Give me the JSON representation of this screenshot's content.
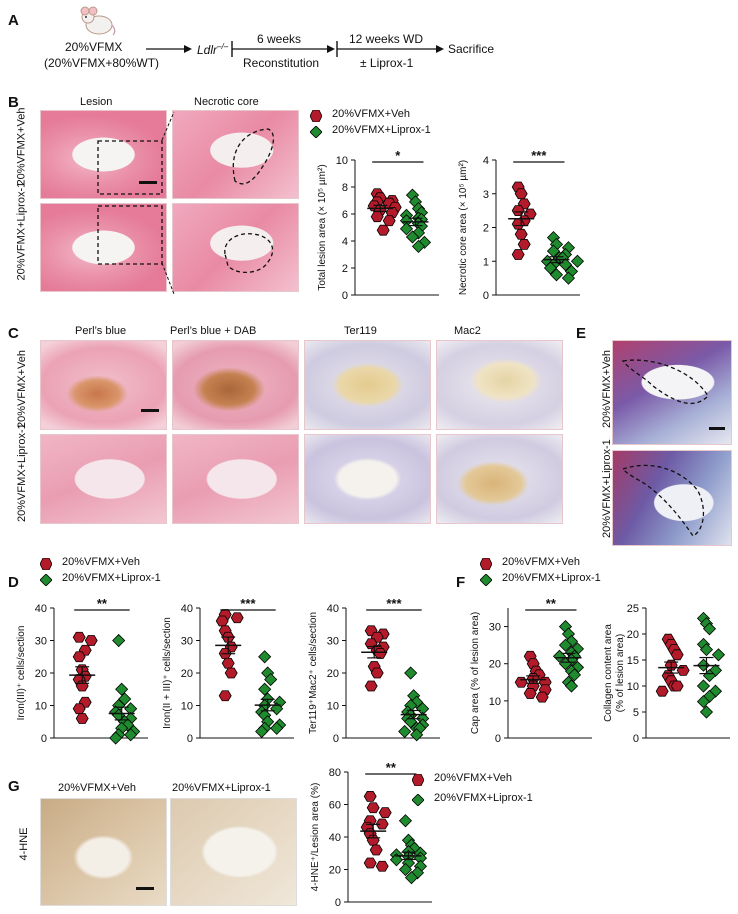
{
  "panelA": {
    "label": "A",
    "donor_line1": "20%VFMX",
    "donor_line2": "(20%VFMX+80%WT)",
    "recipient": "Ldlr",
    "recipient_sup": "–/–",
    "step1_top": "6 weeks",
    "step1_bottom": "Reconstitution",
    "step2_top": "12 weeks WD",
    "step2_bottom": "± Liprox-1",
    "end": "Sacrifice"
  },
  "panelB": {
    "label": "B",
    "col_lesion": "Lesion",
    "col_necrotic": "Necrotic core",
    "row_veh": "20%VFMX\n+Veh",
    "row_lip": "20%VFMX\n+Liprox-1"
  },
  "legend": {
    "veh": "20%VFMX+Veh",
    "lip": "20%VFMX+Liprox-1"
  },
  "panelC": {
    "label": "C",
    "cols": [
      "Perl’s blue",
      "Perl’s blue + DAB",
      "Ter119",
      "Mac2"
    ]
  },
  "panelD": {
    "label": "D"
  },
  "panelE": {
    "label": "E"
  },
  "panelF": {
    "label": "F"
  },
  "panelG": {
    "label": "G",
    "row": "4-HNE",
    "col_veh": "20%VFMX+Veh",
    "col_lip": "20%VFMX+Liprox-1"
  },
  "colors": {
    "veh": "#b31b2b",
    "lip": "#1f8a2e"
  },
  "chart_data": [
    {
      "id": "B1",
      "type": "scatter",
      "ylabel": "Total lesion area (× 10⁵ µm²)",
      "ylim": [
        0,
        10
      ],
      "yticks": [
        0,
        2,
        4,
        6,
        8,
        10
      ],
      "sig": "*",
      "series": [
        {
          "name": "20%VFMX+Veh",
          "values": [
            7.5,
            7.2,
            7.0,
            6.9,
            6.8,
            6.6,
            6.5,
            6.3,
            6.1,
            5.8,
            5.5,
            4.8
          ]
        },
        {
          "name": "20%VFMX+Liprox-1",
          "values": [
            7.4,
            6.9,
            6.4,
            6.1,
            5.9,
            5.7,
            5.6,
            5.5,
            5.3,
            5.1,
            4.9,
            4.6,
            4.3,
            3.9,
            3.6
          ]
        }
      ]
    },
    {
      "id": "B2",
      "type": "scatter",
      "ylabel": "Necrotic core area (× 10⁵ µm²)",
      "ylim": [
        0,
        4
      ],
      "yticks": [
        0,
        1,
        2,
        3,
        4
      ],
      "sig": "***",
      "series": [
        {
          "name": "20%VFMX+Veh",
          "values": [
            3.2,
            3.0,
            2.7,
            2.5,
            2.4,
            2.2,
            2.1,
            1.8,
            1.5,
            1.2
          ]
        },
        {
          "name": "20%VFMX+Liprox-1",
          "values": [
            1.7,
            1.5,
            1.4,
            1.3,
            1.2,
            1.1,
            1.1,
            1.0,
            1.0,
            0.9,
            0.9,
            0.8,
            0.7,
            0.6,
            0.5
          ]
        }
      ]
    },
    {
      "id": "D1",
      "type": "scatter",
      "ylabel": "Iron(III)⁺ cells/section",
      "ylim": [
        0,
        40
      ],
      "yticks": [
        0,
        10,
        20,
        30,
        40
      ],
      "sig": "**",
      "series": [
        {
          "name": "20%VFMX+Veh",
          "values": [
            31,
            30,
            27,
            25,
            21,
            19,
            18,
            16,
            11,
            9,
            6
          ]
        },
        {
          "name": "20%VFMX+Liprox-1",
          "values": [
            30,
            15,
            12,
            10,
            9,
            8,
            7,
            6,
            5,
            4,
            3,
            2,
            1,
            1,
            0
          ]
        }
      ]
    },
    {
      "id": "D2",
      "type": "scatter",
      "ylabel": "Iron(II + III)⁺ cells/section",
      "ylim": [
        0,
        40
      ],
      "yticks": [
        0,
        10,
        20,
        30,
        40
      ],
      "sig": "***",
      "series": [
        {
          "name": "20%VFMX+Veh",
          "values": [
            38,
            37,
            36,
            33,
            31,
            28,
            26,
            23,
            20,
            13
          ]
        },
        {
          "name": "20%VFMX+Liprox-1",
          "values": [
            25,
            20,
            18,
            15,
            12,
            11,
            10,
            9,
            8,
            7,
            5,
            4,
            3,
            3,
            2
          ]
        }
      ]
    },
    {
      "id": "D3",
      "type": "scatter",
      "ylabel": "Ter119⁺Mac2⁺ cells/section",
      "ylim": [
        0,
        40
      ],
      "yticks": [
        0,
        10,
        20,
        30,
        40
      ],
      "sig": "***",
      "series": [
        {
          "name": "20%VFMX+Veh",
          "values": [
            33,
            32,
            31,
            29,
            28,
            27,
            26,
            22,
            20,
            16
          ]
        },
        {
          "name": "20%VFMX+Liprox-1",
          "values": [
            20,
            13,
            11,
            10,
            9,
            8,
            7,
            6,
            6,
            5,
            4,
            3,
            3,
            2,
            1
          ]
        }
      ]
    },
    {
      "id": "F1",
      "type": "scatter",
      "ylabel": "Cap area (% of lesion area)",
      "ylim": [
        0,
        35
      ],
      "yticks": [
        0,
        10,
        20,
        30
      ],
      "sig": "**",
      "series": [
        {
          "name": "20%VFMX+Veh",
          "values": [
            22,
            20,
            18,
            17,
            16,
            15,
            15,
            14,
            13,
            12,
            11
          ]
        },
        {
          "name": "20%VFMX+Liprox-1",
          "values": [
            30,
            28,
            26,
            25,
            24,
            23,
            22,
            22,
            21,
            20,
            19,
            18,
            17,
            15,
            14
          ]
        }
      ]
    },
    {
      "id": "F2",
      "type": "scatter",
      "ylabel": "Collagen content area (% of lesion area)",
      "ylim": [
        0,
        25
      ],
      "yticks": [
        0,
        5,
        10,
        15,
        20,
        25
      ],
      "sig": "",
      "series": [
        {
          "name": "20%VFMX+Veh",
          "values": [
            19,
            18,
            17,
            16,
            14,
            13,
            12,
            11,
            10,
            10,
            9
          ]
        },
        {
          "name": "20%VFMX+Liprox-1",
          "values": [
            23,
            22,
            21,
            18,
            17,
            16,
            14,
            13,
            12,
            10,
            9,
            8,
            7,
            5
          ]
        }
      ]
    },
    {
      "id": "G1",
      "type": "scatter",
      "ylabel": "4-HNE⁺/Lesion area (%)",
      "ylim": [
        0,
        80
      ],
      "yticks": [
        0,
        20,
        40,
        60,
        80
      ],
      "sig": "**",
      "series": [
        {
          "name": "20%VFMX+Veh",
          "values": [
            65,
            58,
            55,
            50,
            48,
            46,
            42,
            38,
            32,
            24,
            22
          ]
        },
        {
          "name": "20%VFMX+Liprox-1",
          "values": [
            50,
            38,
            35,
            33,
            31,
            30,
            29,
            28,
            27,
            26,
            24,
            22,
            20,
            18,
            15
          ]
        }
      ]
    }
  ]
}
